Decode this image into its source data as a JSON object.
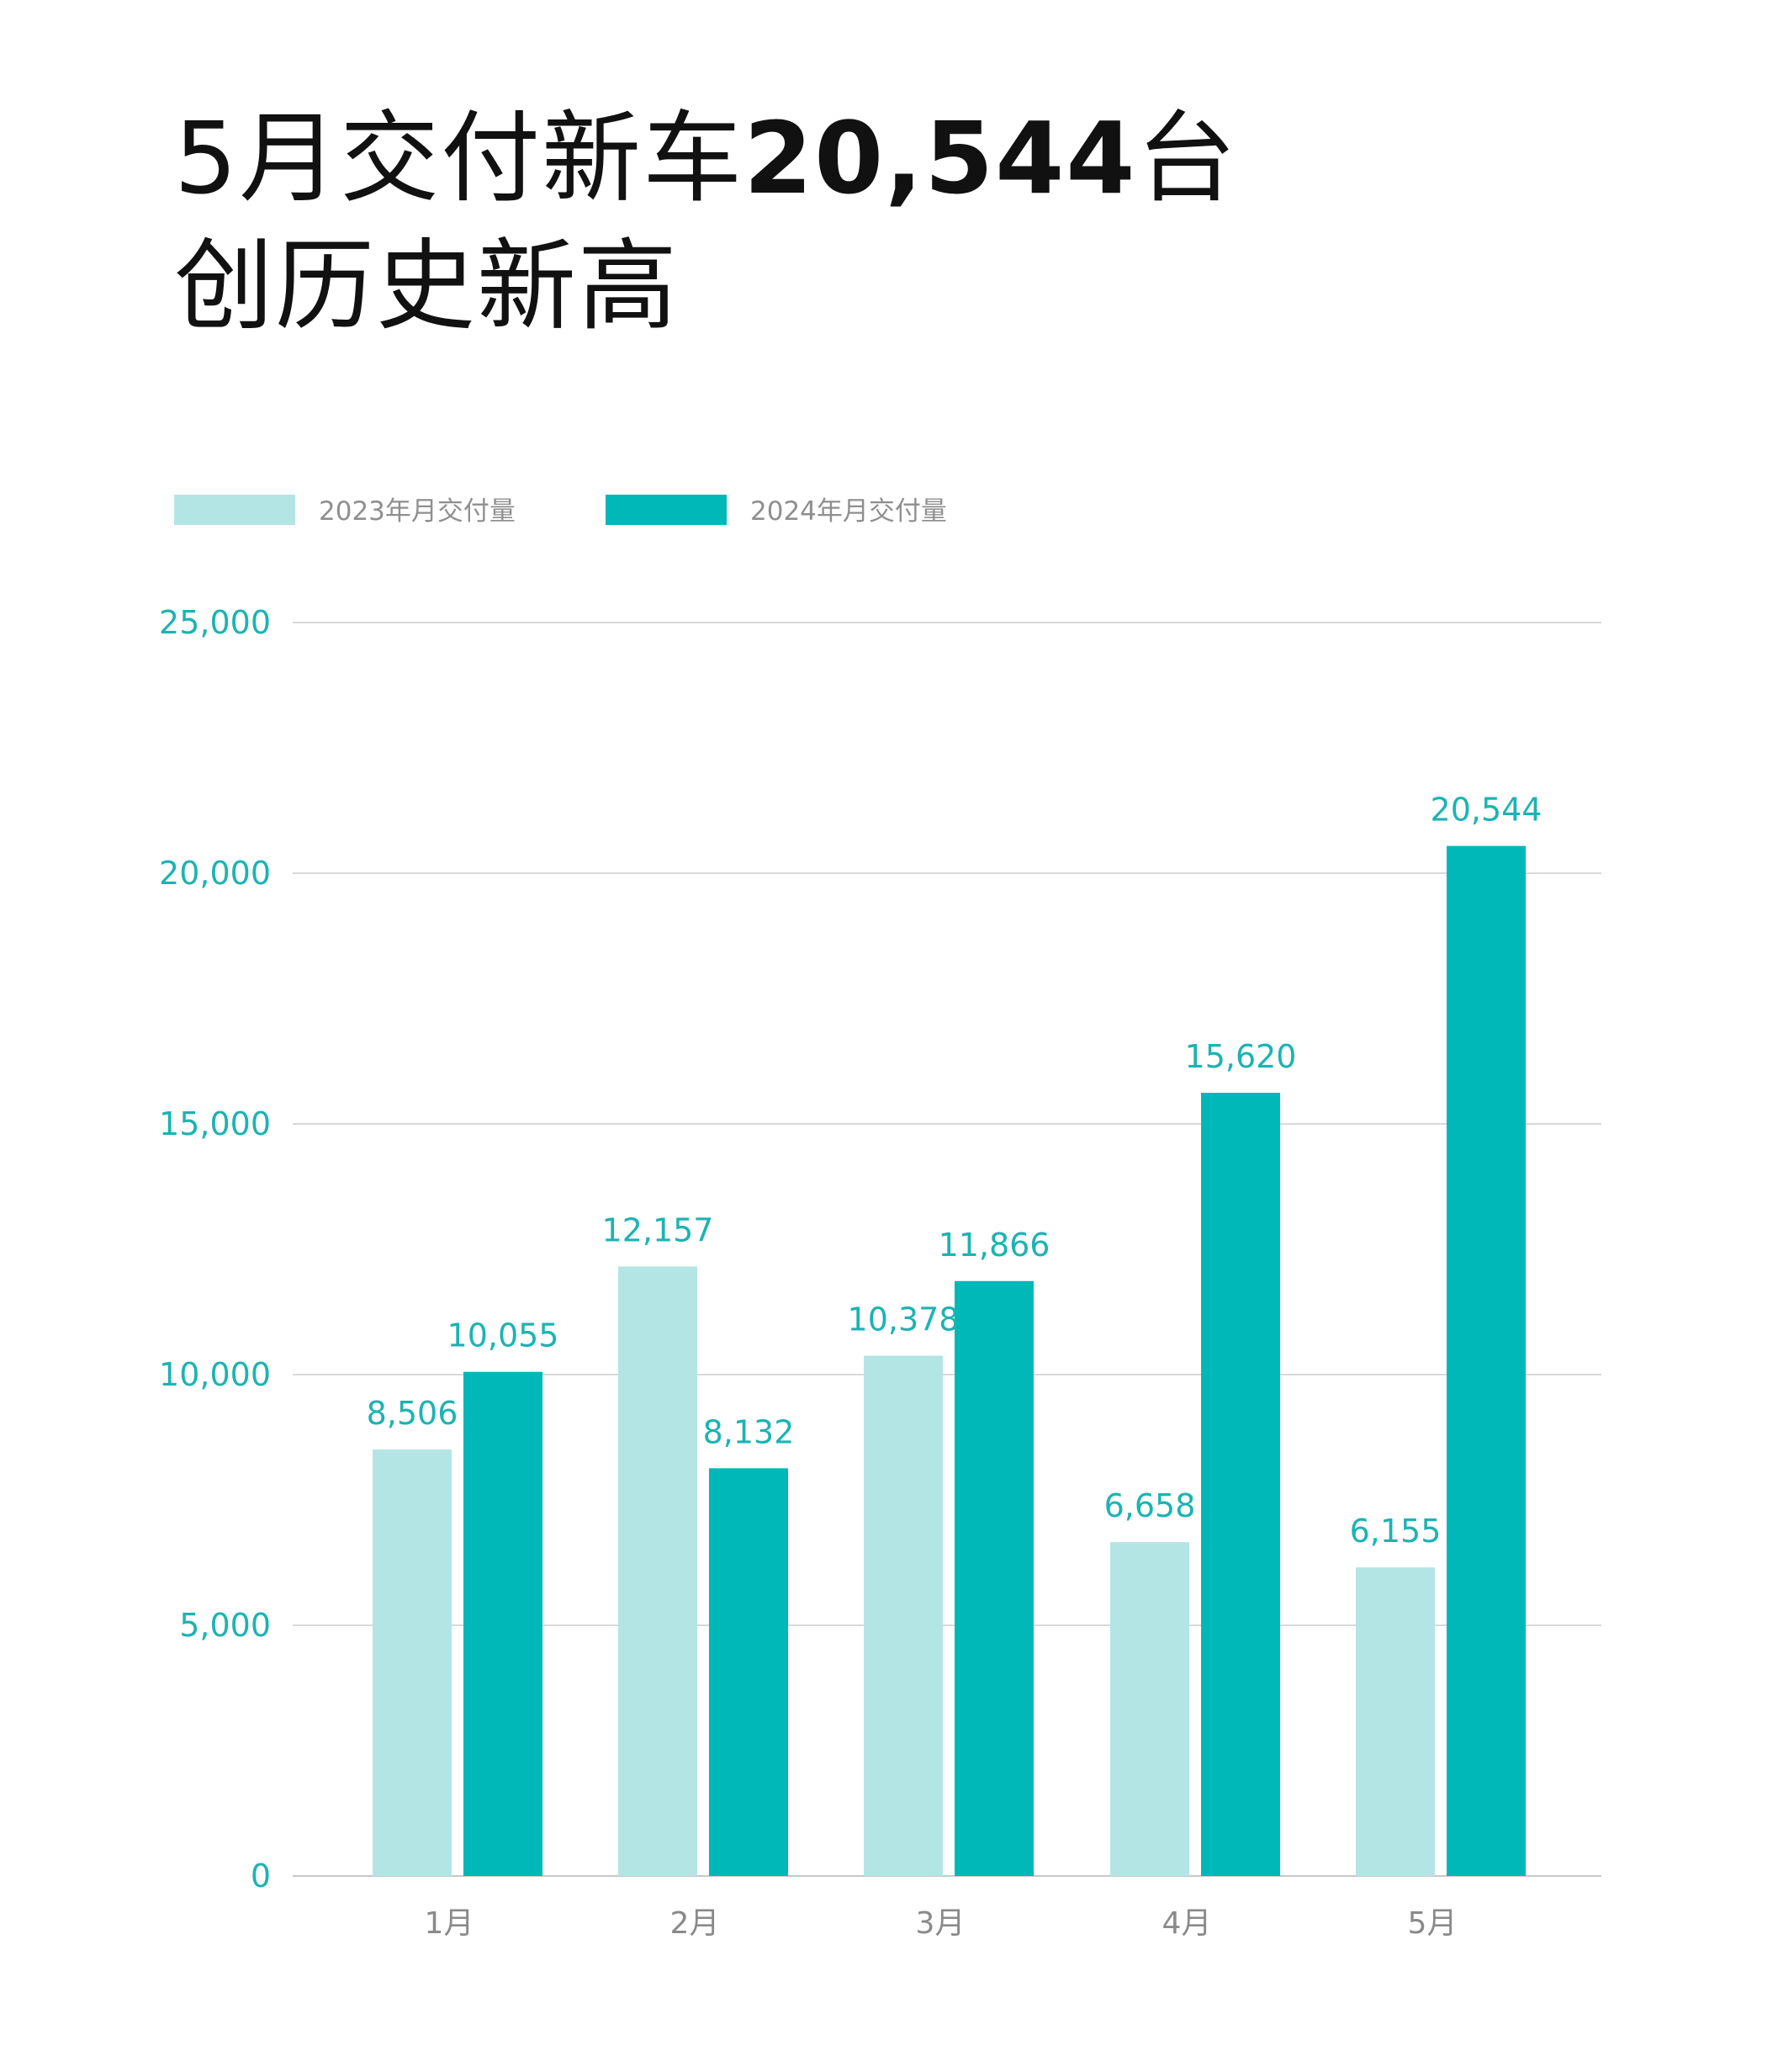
{
  "headline": {
    "line1_prefix": "5月交付新车",
    "line1_number": "20,544",
    "line1_suffix": "台",
    "line2": "创历史新高"
  },
  "chart_data": {
    "type": "bar",
    "categories": [
      "1月",
      "2月",
      "3月",
      "4月",
      "5月"
    ],
    "series": [
      {
        "name": "2023年月交付量",
        "values": [
          8506,
          12157,
          10378,
          6658,
          6155
        ],
        "labels": [
          "8,506",
          "12,157",
          "10,378",
          "6,658",
          "6,155"
        ],
        "color": "#b4e5e5"
      },
      {
        "name": "2024年月交付量",
        "values": [
          10055,
          8132,
          11866,
          15620,
          20544
        ],
        "labels": [
          "10,055",
          "8,132",
          "11,866",
          "15,620",
          "20,544"
        ],
        "color": "#00b8b8"
      }
    ],
    "y_ticks": [
      0,
      5000,
      10000,
      15000,
      20000,
      25000
    ],
    "y_tick_labels": [
      "0",
      "5,000",
      "10,000",
      "15,000",
      "20,000",
      "25,000"
    ],
    "ylim": [
      0,
      25000
    ],
    "grid": true,
    "legend_position": "top-left",
    "title": "",
    "xlabel": "",
    "ylabel": ""
  },
  "colors": {
    "tick_text": "#1cb3b3",
    "value_text": "#1cb3b3",
    "category_text": "#8a8a8a",
    "legend_text": "#8f8f8f",
    "grid": "#d9d9d9",
    "axis": "#c8c8c8"
  }
}
